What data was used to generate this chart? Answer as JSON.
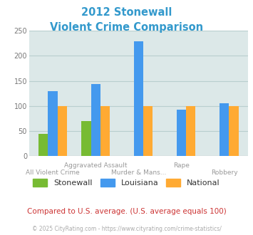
{
  "title_line1": "2012 Stonewall",
  "title_line2": "Violent Crime Comparison",
  "title_color": "#3399cc",
  "categories": [
    "All Violent Crime",
    "Aggravated Assault",
    "Murder & Mans...",
    "Rape",
    "Robbery"
  ],
  "series": {
    "Stonewall": [
      45,
      70,
      0,
      0,
      0
    ],
    "Louisiana": [
      130,
      143,
      228,
      93,
      106
    ],
    "National": [
      100,
      100,
      100,
      100,
      100
    ]
  },
  "colors": {
    "Stonewall": "#77bb33",
    "Louisiana": "#4499ee",
    "National": "#ffaa33"
  },
  "ylim": [
    0,
    250
  ],
  "yticks": [
    0,
    50,
    100,
    150,
    200,
    250
  ],
  "plot_bg": "#dce8e8",
  "grid_color": "#b8cece",
  "footnote": "Compared to U.S. average. (U.S. average equals 100)",
  "footnote_color": "#cc3333",
  "copyright": "© 2025 CityRating.com - https://www.cityrating.com/crime-statistics/",
  "copyright_color": "#aaaaaa",
  "bar_width": 0.22
}
